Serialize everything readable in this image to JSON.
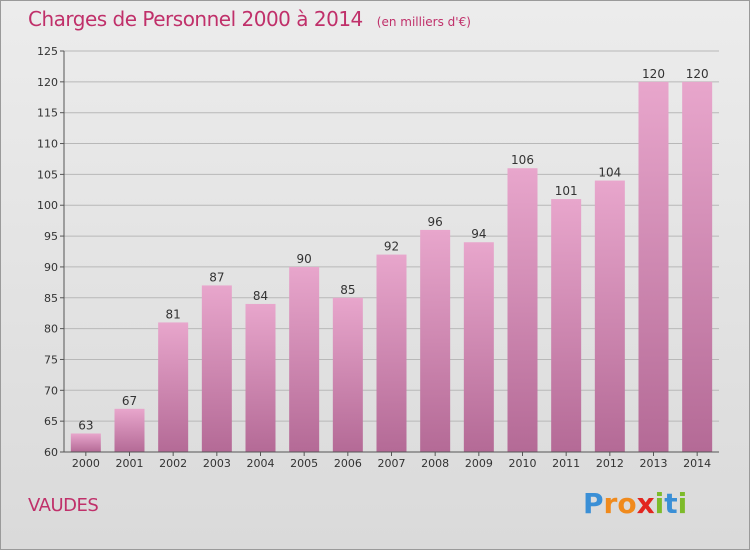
{
  "header": {
    "title": "Charges de Personnel 2000 à 2014",
    "unit": "(en milliers d'€)"
  },
  "location": "VAUDES",
  "logo": {
    "letters": [
      "P",
      "r",
      "o",
      "x",
      "i",
      "t",
      "i"
    ],
    "colors": [
      "#3a8fd6",
      "#f08a1c",
      "#f08a1c",
      "#e2261f",
      "#7dbb2a",
      "#3a8fd6",
      "#7dbb2a"
    ]
  },
  "colors": {
    "accent": "#c0306a",
    "bar_top": "#e8a6cc",
    "bar_bottom": "#b46a96"
  },
  "chart_data": {
    "type": "bar",
    "title": "Charges de Personnel 2000 à 2014",
    "subtitle": "(en milliers d'€)",
    "categories": [
      "2000",
      "2001",
      "2002",
      "2003",
      "2004",
      "2005",
      "2006",
      "2007",
      "2008",
      "2009",
      "2010",
      "2011",
      "2012",
      "2013",
      "2014"
    ],
    "values": [
      63,
      67,
      81,
      87,
      84,
      90,
      85,
      92,
      96,
      94,
      106,
      101,
      104,
      120,
      120
    ],
    "ylim": [
      60,
      125
    ],
    "yticks": [
      60,
      65,
      70,
      75,
      80,
      85,
      90,
      95,
      100,
      105,
      110,
      115,
      120,
      125
    ],
    "grid": true,
    "data_labels": true
  }
}
